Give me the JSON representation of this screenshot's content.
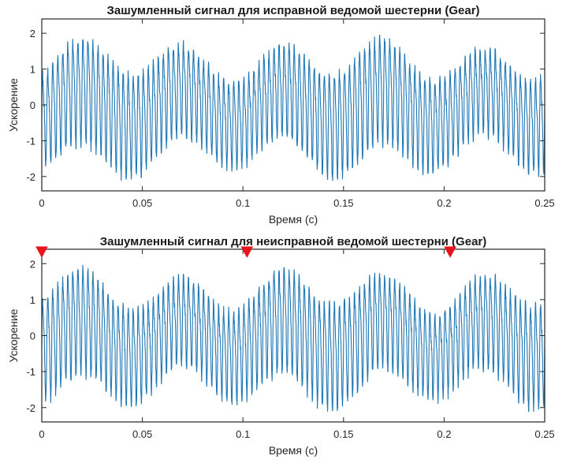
{
  "chart_data": [
    {
      "type": "line",
      "title": "Зашумленный сигнал для исправной ведомой шестерни (Gear)",
      "xlabel": "Время (с)",
      "ylabel": "Ускорение",
      "xlim": [
        0,
        0.25
      ],
      "ylim": [
        -2.4,
        2.4
      ],
      "xticks": [
        0,
        0.05,
        0.1,
        0.15,
        0.2,
        0.25
      ],
      "xtick_labels": [
        "0",
        "0.05",
        "0.1",
        "0.15",
        "0.2",
        "0.25"
      ],
      "yticks": [
        -2,
        -1,
        0,
        1,
        2
      ],
      "ytick_labels": [
        "-2",
        "-1",
        "0",
        "1",
        "2"
      ],
      "grid": false,
      "line_color": "#1f77b4",
      "signal": {
        "description_of_shape": "dense oscillation (~2 samples resolution) modulated by slow wave",
        "carrier_hz": 400,
        "carrier_amplitude": 1.2,
        "mod_hz": 20,
        "mod_amplitude": 0.5,
        "noise": 0.15,
        "samples": 2400
      },
      "fault_markers": []
    },
    {
      "type": "line",
      "title": "Зашумленный сигнал для неисправной ведомой шестерни (Gear)",
      "xlabel": "Время (с)",
      "ylabel": "Ускорение",
      "xlim": [
        0,
        0.25
      ],
      "ylim": [
        -2.4,
        2.4
      ],
      "xticks": [
        0,
        0.05,
        0.1,
        0.15,
        0.2,
        0.25
      ],
      "xtick_labels": [
        "0",
        "0.05",
        "0.1",
        "0.15",
        "0.2",
        "0.25"
      ],
      "yticks": [
        -2,
        -1,
        0,
        1,
        2
      ],
      "ytick_labels": [
        "-2",
        "-1",
        "0",
        "1",
        "2"
      ],
      "grid": false,
      "line_color": "#1f77b4",
      "marker_color": "#e8141b",
      "signal": {
        "carrier_hz": 400,
        "carrier_amplitude": 1.2,
        "mod_hz": 20,
        "mod_amplitude": 0.5,
        "noise": 0.15,
        "samples": 2400
      },
      "fault_markers": [
        0,
        0.102,
        0.203
      ]
    }
  ]
}
